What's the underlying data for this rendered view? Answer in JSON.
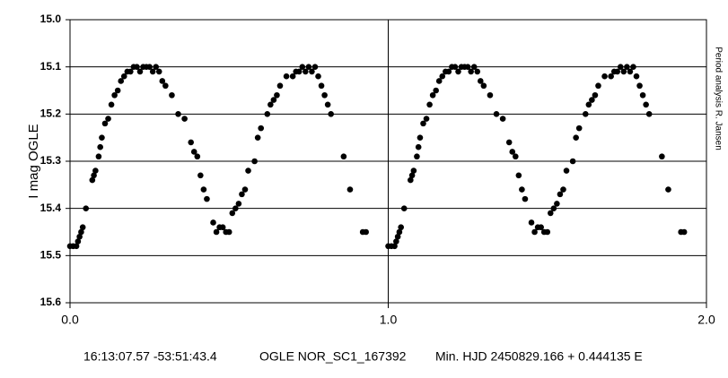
{
  "chart_data": {
    "type": "scatter",
    "y_label": "I mag OGLE",
    "side_note": "Period analysis R. Jansen",
    "footer": [
      "16:13:07.57 -53:51:43.4",
      "OGLE NOR_SC1_167392",
      "Min. HJD 2450829.166 + 0.444135 E"
    ],
    "color": "#000000",
    "y_inverted": true,
    "grid": true,
    "xlim": [
      0,
      2
    ],
    "xticks": [
      {
        "value": 0,
        "label": "0.0"
      },
      {
        "value": 1,
        "label": "1.0"
      },
      {
        "value": 2,
        "label": "2.0"
      }
    ],
    "ylim": [
      15.0,
      15.6
    ],
    "yticks": [
      {
        "value": 15.0,
        "label": "15.0"
      },
      15.1,
      15.2,
      15.3,
      15.4,
      15.5,
      15.6
    ],
    "x": [
      0,
      0.01,
      0.02,
      0.025,
      0.03,
      0.035,
      0.04,
      0.05,
      0.07,
      0.075,
      0.08,
      0.09,
      0.095,
      0.1,
      0.11,
      0.12,
      0.13,
      0.14,
      0.15,
      0.16,
      0.17,
      0.18,
      0.19,
      0.2,
      0.21,
      0.22,
      0.23,
      0.24,
      0.25,
      0.26,
      0.27,
      0.28,
      0.29,
      0.3,
      0.32,
      0.34,
      0.36,
      0.38,
      0.39,
      0.4,
      0.41,
      0.42,
      0.43,
      0.45,
      0.46,
      0.47,
      0.48,
      0.49,
      0.5,
      0.51,
      0.52,
      0.53,
      0.54,
      0.55,
      0.56,
      0.58,
      0.59,
      0.6,
      0.62,
      0.63,
      0.64,
      0.65,
      0.66,
      0.68,
      0.7,
      0.71,
      0.72,
      0.73,
      0.74,
      0.75,
      0.76,
      0.77,
      0.78,
      0.79,
      0.8,
      0.81,
      0.82,
      0.86,
      0.88,
      0.92,
      0.93,
      1,
      1.01,
      1.02,
      1.025,
      1.03,
      1.035,
      1.04,
      1.05,
      1.07,
      1.075,
      1.08,
      1.09,
      1.095,
      1.1,
      1.11,
      1.12,
      1.13,
      1.14,
      1.15,
      1.16,
      1.17,
      1.18,
      1.19,
      1.2,
      1.21,
      1.22,
      1.23,
      1.24,
      1.25,
      1.26,
      1.27,
      1.28,
      1.29,
      1.3,
      1.32,
      1.34,
      1.36,
      1.38,
      1.39,
      1.4,
      1.41,
      1.42,
      1.43,
      1.45,
      1.46,
      1.47,
      1.48,
      1.49,
      1.5,
      1.51,
      1.52,
      1.53,
      1.54,
      1.55,
      1.56,
      1.58,
      1.59,
      1.6,
      1.62,
      1.63,
      1.64,
      1.65,
      1.66,
      1.68,
      1.7,
      1.71,
      1.72,
      1.73,
      1.74,
      1.75,
      1.76,
      1.77,
      1.78,
      1.79,
      1.8,
      1.81,
      1.82,
      1.86,
      1.88,
      1.92,
      1.93
    ],
    "values": [
      15.48,
      15.48,
      15.48,
      15.47,
      15.46,
      15.45,
      15.44,
      15.4,
      15.34,
      15.33,
      15.32,
      15.29,
      15.27,
      15.25,
      15.22,
      15.21,
      15.18,
      15.16,
      15.15,
      15.13,
      15.12,
      15.11,
      15.11,
      15.1,
      15.1,
      15.11,
      15.1,
      15.1,
      15.1,
      15.11,
      15.1,
      15.11,
      15.13,
      15.14,
      15.16,
      15.2,
      15.21,
      15.26,
      15.28,
      15.29,
      15.33,
      15.36,
      15.38,
      15.43,
      15.45,
      15.44,
      15.44,
      15.45,
      15.45,
      15.41,
      15.4,
      15.39,
      15.37,
      15.36,
      15.32,
      15.3,
      15.25,
      15.23,
      15.2,
      15.18,
      15.17,
      15.16,
      15.14,
      15.12,
      15.12,
      15.11,
      15.11,
      15.1,
      15.11,
      15.1,
      15.11,
      15.1,
      15.12,
      15.14,
      15.16,
      15.18,
      15.2,
      15.29,
      15.36,
      15.45,
      15.45,
      15.48,
      15.48,
      15.48,
      15.47,
      15.46,
      15.45,
      15.44,
      15.4,
      15.34,
      15.33,
      15.32,
      15.29,
      15.27,
      15.25,
      15.22,
      15.21,
      15.18,
      15.16,
      15.15,
      15.13,
      15.12,
      15.11,
      15.11,
      15.1,
      15.1,
      15.11,
      15.1,
      15.1,
      15.1,
      15.11,
      15.1,
      15.11,
      15.13,
      15.14,
      15.16,
      15.2,
      15.21,
      15.26,
      15.28,
      15.29,
      15.33,
      15.36,
      15.38,
      15.43,
      15.45,
      15.44,
      15.44,
      15.45,
      15.45,
      15.41,
      15.4,
      15.39,
      15.37,
      15.36,
      15.32,
      15.3,
      15.25,
      15.23,
      15.2,
      15.18,
      15.17,
      15.16,
      15.14,
      15.12,
      15.12,
      15.11,
      15.11,
      15.1,
      15.11,
      15.1,
      15.11,
      15.1,
      15.12,
      15.14,
      15.16,
      15.18,
      15.2,
      15.29,
      15.36,
      15.45,
      15.45
    ]
  }
}
